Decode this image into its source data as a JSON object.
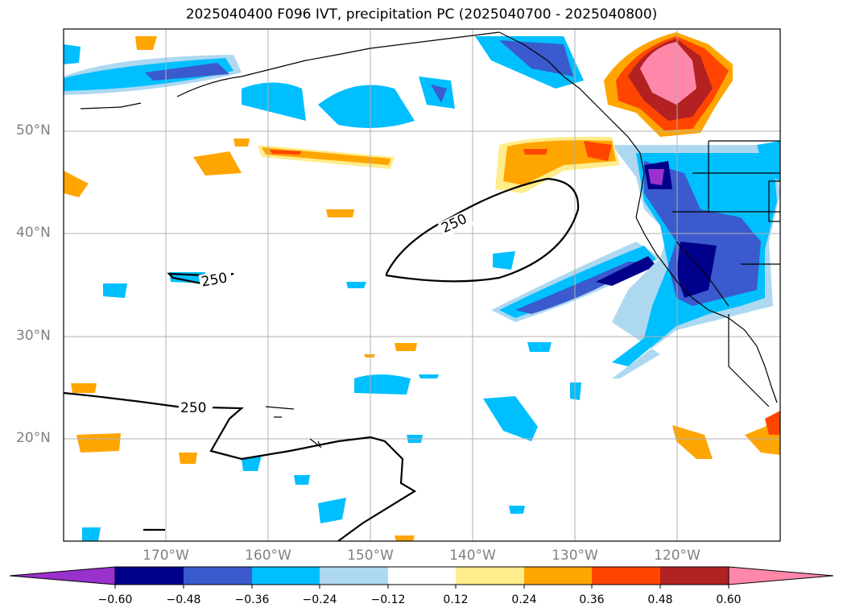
{
  "title": "2025040400 F096 IVT, precipitation PC (2025040700 - 2025040800)",
  "lat_labels": [
    "50°N",
    "40°N",
    "30°N",
    "20°N"
  ],
  "lon_labels": [
    "170°W",
    "160°W",
    "150°W",
    "140°W",
    "130°W",
    "120°W"
  ],
  "contour_labels": [
    "250",
    "250",
    "250"
  ],
  "colorbar": {
    "ticks": [
      "−0.60",
      "−0.48",
      "−0.36",
      "−0.24",
      "−0.12",
      "0.12",
      "0.24",
      "0.36",
      "0.48",
      "0.60"
    ],
    "colors": [
      "#9932cc",
      "#00008b",
      "#3a5acd",
      "#00bfff",
      "#add8f0",
      "#ffffff",
      "#ffec8b",
      "#ffa500",
      "#ff4500",
      "#b22222",
      "#ff88aa",
      "#ff88aa"
    ]
  },
  "colors": {
    "grid": "#b0b0b0",
    "coast": "#000000"
  }
}
